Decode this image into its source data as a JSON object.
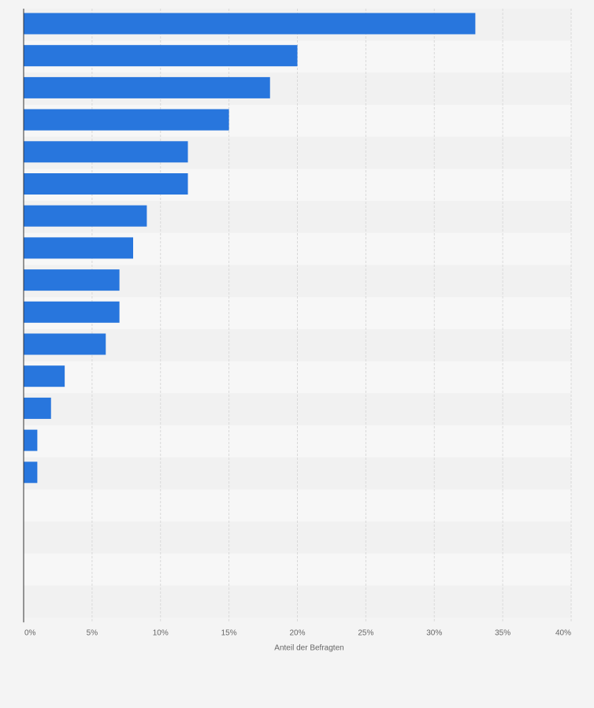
{
  "chart_data": {
    "type": "bar",
    "orientation": "horizontal",
    "title": "",
    "xlabel": "Anteil der Befragten",
    "ylabel": "",
    "xlim": [
      0,
      40
    ],
    "x_ticks": [
      0,
      5,
      10,
      15,
      20,
      25,
      30,
      35,
      40
    ],
    "x_tick_labels": [
      "0%",
      "5%",
      "10%",
      "15%",
      "20%",
      "25%",
      "30%",
      "35%",
      "40%"
    ],
    "grid": true,
    "categories": [
      "",
      "",
      "",
      "",
      "",
      "",
      "",
      "",
      "",
      "",
      "",
      "",
      "",
      "",
      "",
      "",
      "",
      "",
      ""
    ],
    "values": [
      33,
      20,
      18,
      15,
      12,
      12,
      9,
      8,
      7,
      7,
      6,
      3,
      2,
      1,
      1,
      0,
      0,
      0,
      0
    ],
    "unit": "%"
  },
  "colors": {
    "bar": "#2876dd",
    "background": "#f4f4f4",
    "band_light": "#f7f7f7",
    "band_dark": "#f1f1f1",
    "grid": "#d9d9d9",
    "axis": "#333333",
    "text": "#666666"
  }
}
